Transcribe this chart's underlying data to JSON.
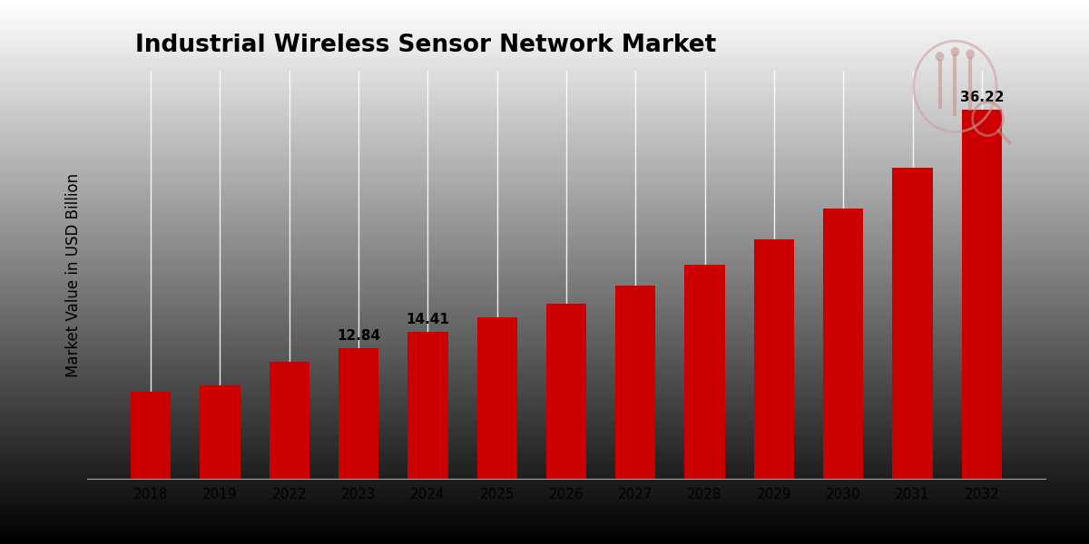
{
  "title": "Industrial Wireless Sensor Network Market",
  "ylabel": "Market Value in USD Billion",
  "categories": [
    "2018",
    "2019",
    "2022",
    "2023",
    "2024",
    "2025",
    "2026",
    "2027",
    "2028",
    "2029",
    "2030",
    "2031",
    "2032"
  ],
  "values": [
    8.5,
    9.2,
    11.5,
    12.84,
    14.41,
    15.8,
    17.2,
    18.9,
    21.0,
    23.5,
    26.5,
    30.5,
    36.22
  ],
  "bar_color": "#cc0000",
  "label_values": {
    "2023": "12.84",
    "2024": "14.41",
    "2032": "36.22"
  },
  "background_color": "#e0e0e0",
  "title_fontsize": 19,
  "ylabel_fontsize": 12,
  "tick_fontsize": 11,
  "annotation_fontsize": 11,
  "ylim": [
    0,
    40
  ],
  "bottom_stripe_color": "#cc0000"
}
